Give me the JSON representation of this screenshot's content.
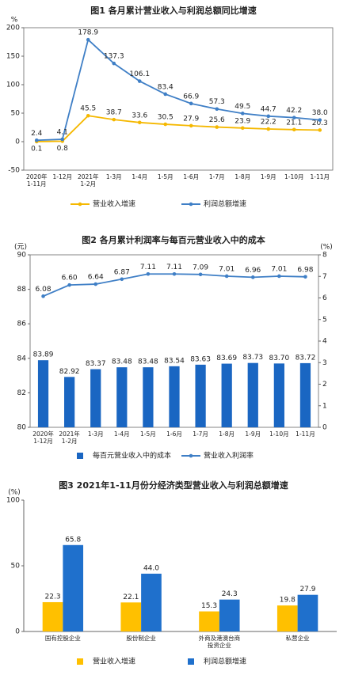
{
  "chart_data": [
    {
      "type": "line",
      "title": "图1 各月累计营业收入与利润总额同比增速",
      "ylabel": "%",
      "categories": [
        "2020年\n1-11月",
        "1-12月",
        "2021年\n1-2月",
        "1-3月",
        "1-4月",
        "1-5月",
        "1-6月",
        "1-7月",
        "1-8月",
        "1-9月",
        "1-10月",
        "1-11月"
      ],
      "series": [
        {
          "name": "营业收入增速",
          "color": "#f5b800",
          "values": [
            0.1,
            0.8,
            45.5,
            38.7,
            33.6,
            30.5,
            27.9,
            25.6,
            23.9,
            22.2,
            21.1,
            20.3
          ],
          "value_labels": [
            "0.1",
            "0.8",
            "45.5",
            "38.7",
            "33.6",
            "30.5",
            "27.9",
            "25.6",
            "23.9",
            "22.2",
            "21.1",
            "20.3"
          ]
        },
        {
          "name": "利润总额增速",
          "color": "#3f7fc6",
          "values": [
            2.4,
            4.1,
            178.9,
            137.3,
            106.1,
            83.4,
            66.9,
            57.3,
            49.5,
            44.7,
            42.2,
            38
          ],
          "value_labels": [
            "2.4",
            "4.1",
            "178.9",
            "137.3",
            "106.1",
            "83.4",
            "66.9",
            "57.3",
            "49.5",
            "44.7",
            "42.2",
            "38.0"
          ]
        }
      ],
      "ylim": [
        -50,
        200
      ],
      "yticks": [
        -50,
        0,
        50,
        100,
        150,
        200
      ]
    },
    {
      "type": "bar",
      "title": "图2 各月累计利润率与每百元营业收入中的成本",
      "ylabel": "(元)",
      "y2label": "(%)",
      "categories": [
        "2020年\n1-12月",
        "2021年\n1-2月",
        "1-3月",
        "1-4月",
        "1-5月",
        "1-6月",
        "1-7月",
        "1-8月",
        "1-9月",
        "1-10月",
        "1-11月"
      ],
      "series": [
        {
          "name": "每百元营业收入中的成本",
          "type": "bar",
          "color": "#1a66c2",
          "values": [
            83.89,
            82.92,
            83.37,
            83.48,
            83.48,
            83.54,
            83.63,
            83.69,
            83.73,
            83.7,
            83.72
          ],
          "value_labels": [
            "83.89",
            "82.92",
            "83.37",
            "83.48",
            "83.48",
            "83.54",
            "83.63",
            "83.69",
            "83.73",
            "83.70",
            "83.72"
          ]
        },
        {
          "name": "营业收入利润率",
          "type": "line",
          "axis": "y2",
          "color": "#3f7fc6",
          "values": [
            6.08,
            6.6,
            6.64,
            6.87,
            7.11,
            7.11,
            7.09,
            7.01,
            6.96,
            7.01,
            6.98
          ],
          "value_labels": [
            "6.08",
            "6.60",
            "6.64",
            "6.87",
            "7.11",
            "7.11",
            "7.09",
            "7.01",
            "6.96",
            "7.01",
            "6.98"
          ]
        }
      ],
      "ylim": [
        80,
        90
      ],
      "yticks": [
        80,
        82,
        84,
        86,
        88,
        90
      ],
      "y2lim": [
        0,
        8
      ],
      "y2ticks": [
        0,
        1,
        2,
        3,
        4,
        5,
        6,
        7,
        8
      ]
    },
    {
      "type": "bar",
      "title": "图3 2021年1-11月份分经济类型营业收入与利润总额增速",
      "ylabel": "(%)",
      "categories": [
        "国有控股企业",
        "股份制企业",
        "外商及港澳台商\n投资企业",
        "私营企业"
      ],
      "series": [
        {
          "name": "营业收入增速",
          "color": "#ffc000",
          "values": [
            22.3,
            22.1,
            15.3,
            19.8
          ],
          "value_labels": [
            "22.3",
            "22.1",
            "15.3",
            "19.8"
          ]
        },
        {
          "name": "利润总额增速",
          "color": "#1f70cc",
          "values": [
            65.8,
            44,
            24.3,
            27.9
          ],
          "value_labels": [
            "65.8",
            "44.0",
            "24.3",
            "27.9"
          ]
        }
      ],
      "ylim": [
        0,
        100
      ],
      "yticks": [
        0,
        50,
        100
      ]
    }
  ]
}
